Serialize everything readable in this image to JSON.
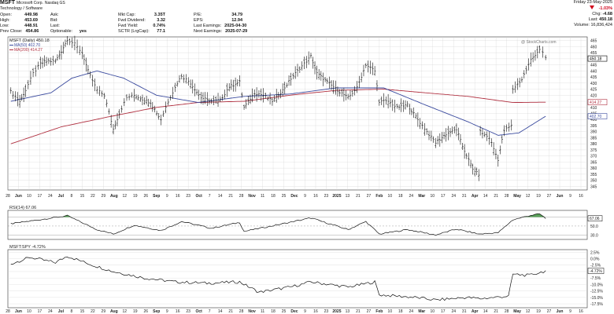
{
  "header": {
    "ticker": "MSFT",
    "name": "Microsoft Corp.",
    "exchange": "Nasdaq GS",
    "sector": "Technology / Software",
    "date": "Friday 23-May-2025",
    "chg_pct": "-1.03%",
    "chg_label": "Chg:",
    "chg": "-4.68",
    "last_label": "Last:",
    "last": "450.18",
    "volume": "Volume: 16,836,424",
    "watermark": "@ StockCharts.com"
  },
  "fundamentals": [
    [
      {
        "label": "Open:",
        "value": "449.98"
      },
      {
        "label": "High:",
        "value": "453.69"
      },
      {
        "label": "Low:",
        "value": "448.91"
      },
      {
        "label": "Prev Close:",
        "value": "454.86"
      }
    ],
    [
      {
        "label": "Ask:",
        "value": ""
      },
      {
        "label": "Bid:",
        "value": ""
      },
      {
        "label": "Last:",
        "value": ""
      },
      {
        "label": "Optionable:",
        "value": "yes"
      }
    ],
    [
      {
        "label": "Mkt Cap:",
        "value": "3.35T"
      },
      {
        "label": "Fwd Dividend:",
        "value": "3.32"
      },
      {
        "label": "Fwd Yield:",
        "value": "0.74%"
      },
      {
        "label": "SCTR (LrgCap):",
        "value": "77.1"
      }
    ],
    [
      {
        "label": "P/E:",
        "value": "34.79"
      },
      {
        "label": "EPS:",
        "value": "12.94"
      },
      {
        "label": "Last Earnings:",
        "value": "2025-04-30"
      },
      {
        "label": "Next Earnings:",
        "value": "2025-07-29"
      }
    ]
  ],
  "colors": {
    "price": "#111111",
    "ma50": "#3a4a9e",
    "ma200": "#b03040",
    "rsi_fill": "#3d8f3d",
    "axis": "#333333",
    "grid": "#d0d0d0"
  },
  "chart_data": [
    {
      "type": "line",
      "panel": "price",
      "title": "MSFT (Daily) 450.18",
      "legend": [
        "MA(50) 402.70",
        "MA(200) 414.27"
      ],
      "chart_style": "ohlc",
      "y_ticks": [
        "465",
        "460",
        "455",
        "450",
        "445",
        "440",
        "435",
        "430",
        "425",
        "420",
        "415",
        "410",
        "405",
        "400",
        "395",
        "390",
        "385",
        "380",
        "375",
        "370",
        "365",
        "360",
        "355",
        "350",
        "345"
      ],
      "ylim": [
        342,
        468
      ],
      "y_markers": {
        "last": "450.18",
        "ma200": "414.27",
        "ma50": "402.70"
      },
      "x_tick_labels": [
        "28",
        "Jun",
        "10",
        "17",
        "24",
        "Jul",
        "8",
        "15",
        "22",
        "29",
        "Aug",
        "12",
        "19",
        "26",
        "Sep",
        "9",
        "16",
        "23",
        "Oct",
        "7",
        "14",
        "21",
        "28",
        "Nov",
        "11",
        "18",
        "25",
        "Dec",
        "9",
        "16",
        "23",
        "2025",
        "13",
        "21",
        "27",
        "Feb",
        "10",
        "18",
        "24",
        "Mar",
        "10",
        "17",
        "24",
        "31",
        "Apr",
        "14",
        "21",
        "28",
        "May",
        "12",
        "19",
        "27",
        "Jun",
        "9",
        "16"
      ],
      "series": [
        {
          "name": "MSFT",
          "values": [
            {
              "x": "2024-05-28",
              "y": 423
            },
            {
              "x": "2024-06-03",
              "y": 415
            },
            {
              "x": "2024-06-07",
              "y": 424
            },
            {
              "x": "2024-06-12",
              "y": 438
            },
            {
              "x": "2024-06-17",
              "y": 446
            },
            {
              "x": "2024-06-21",
              "y": 448
            },
            {
              "x": "2024-06-27",
              "y": 448
            },
            {
              "x": "2024-07-01",
              "y": 456
            },
            {
              "x": "2024-07-05",
              "y": 466
            },
            {
              "x": "2024-07-10",
              "y": 462
            },
            {
              "x": "2024-07-15",
              "y": 455
            },
            {
              "x": "2024-07-19",
              "y": 440
            },
            {
              "x": "2024-07-25",
              "y": 424
            },
            {
              "x": "2024-07-30",
              "y": 420
            },
            {
              "x": "2024-08-05",
              "y": 392
            },
            {
              "x": "2024-08-09",
              "y": 405
            },
            {
              "x": "2024-08-14",
              "y": 418
            },
            {
              "x": "2024-08-19",
              "y": 420
            },
            {
              "x": "2024-08-26",
              "y": 416
            },
            {
              "x": "2024-08-30",
              "y": 414
            },
            {
              "x": "2024-09-06",
              "y": 400
            },
            {
              "x": "2024-09-11",
              "y": 415
            },
            {
              "x": "2024-09-17",
              "y": 430
            },
            {
              "x": "2024-09-20",
              "y": 436
            },
            {
              "x": "2024-09-26",
              "y": 430
            },
            {
              "x": "2024-10-03",
              "y": 418
            },
            {
              "x": "2024-10-10",
              "y": 415
            },
            {
              "x": "2024-10-16",
              "y": 416
            },
            {
              "x": "2024-10-22",
              "y": 427
            },
            {
              "x": "2024-10-29",
              "y": 431
            },
            {
              "x": "2024-11-01",
              "y": 410
            },
            {
              "x": "2024-11-08",
              "y": 422
            },
            {
              "x": "2024-11-14",
              "y": 420
            },
            {
              "x": "2024-11-20",
              "y": 415
            },
            {
              "x": "2024-11-27",
              "y": 424
            },
            {
              "x": "2024-12-04",
              "y": 436
            },
            {
              "x": "2024-12-10",
              "y": 444
            },
            {
              "x": "2024-12-16",
              "y": 452
            },
            {
              "x": "2024-12-20",
              "y": 438
            },
            {
              "x": "2024-12-27",
              "y": 431
            },
            {
              "x": "2025-01-03",
              "y": 424
            },
            {
              "x": "2025-01-10",
              "y": 418
            },
            {
              "x": "2025-01-16",
              "y": 426
            },
            {
              "x": "2025-01-22",
              "y": 445
            },
            {
              "x": "2025-01-28",
              "y": 440
            },
            {
              "x": "2025-01-31",
              "y": 415
            },
            {
              "x": "2025-02-06",
              "y": 415
            },
            {
              "x": "2025-02-12",
              "y": 410
            },
            {
              "x": "2025-02-19",
              "y": 412
            },
            {
              "x": "2025-02-26",
              "y": 400
            },
            {
              "x": "2025-03-04",
              "y": 390
            },
            {
              "x": "2025-03-10",
              "y": 381
            },
            {
              "x": "2025-03-17",
              "y": 388
            },
            {
              "x": "2025-03-24",
              "y": 392
            },
            {
              "x": "2025-03-28",
              "y": 378
            },
            {
              "x": "2025-04-04",
              "y": 359
            },
            {
              "x": "2025-04-08",
              "y": 355
            },
            {
              "x": "2025-04-09",
              "y": 390
            },
            {
              "x": "2025-04-15",
              "y": 385
            },
            {
              "x": "2025-04-21",
              "y": 367
            },
            {
              "x": "2025-04-25",
              "y": 391
            },
            {
              "x": "2025-04-30",
              "y": 395
            },
            {
              "x": "2025-05-01",
              "y": 425
            },
            {
              "x": "2025-05-07",
              "y": 433
            },
            {
              "x": "2025-05-13",
              "y": 449
            },
            {
              "x": "2025-05-19",
              "y": 458
            },
            {
              "x": "2025-05-21",
              "y": 455
            },
            {
              "x": "2025-05-23",
              "y": 450.18
            }
          ]
        },
        {
          "name": "MA(50)",
          "values": [
            {
              "x": "2024-05-28",
              "y": 415
            },
            {
              "x": "2024-06-24",
              "y": 422
            },
            {
              "x": "2024-07-08",
              "y": 434
            },
            {
              "x": "2024-07-25",
              "y": 440
            },
            {
              "x": "2024-08-12",
              "y": 434
            },
            {
              "x": "2024-09-03",
              "y": 420
            },
            {
              "x": "2024-10-01",
              "y": 414
            },
            {
              "x": "2024-11-01",
              "y": 419
            },
            {
              "x": "2024-12-02",
              "y": 421
            },
            {
              "x": "2025-01-02",
              "y": 426
            },
            {
              "x": "2025-02-03",
              "y": 426
            },
            {
              "x": "2025-03-03",
              "y": 412
            },
            {
              "x": "2025-04-01",
              "y": 398
            },
            {
              "x": "2025-04-21",
              "y": 387
            },
            {
              "x": "2025-05-05",
              "y": 389
            },
            {
              "x": "2025-05-23",
              "y": 402.7
            }
          ]
        },
        {
          "name": "MA(200)",
          "values": [
            {
              "x": "2024-05-28",
              "y": 380
            },
            {
              "x": "2024-07-01",
              "y": 394
            },
            {
              "x": "2024-08-01",
              "y": 402
            },
            {
              "x": "2024-09-03",
              "y": 410
            },
            {
              "x": "2024-10-01",
              "y": 414
            },
            {
              "x": "2024-11-01",
              "y": 415
            },
            {
              "x": "2024-12-02",
              "y": 420
            },
            {
              "x": "2025-01-02",
              "y": 424
            },
            {
              "x": "2025-02-03",
              "y": 425
            },
            {
              "x": "2025-03-03",
              "y": 422
            },
            {
              "x": "2025-04-01",
              "y": 419
            },
            {
              "x": "2025-05-01",
              "y": 414
            },
            {
              "x": "2025-05-23",
              "y": 414.27
            }
          ]
        }
      ]
    },
    {
      "type": "line",
      "panel": "rsi",
      "title": "RSI(14) 67.06",
      "y_ticks": [
        "70.0",
        "50.0",
        "30.0"
      ],
      "ylim": [
        20,
        85
      ],
      "last": "67.06",
      "series": [
        {
          "name": "RSI(14)",
          "values": [
            {
              "x": "2024-05-28",
              "y": 55
            },
            {
              "x": "2024-06-12",
              "y": 62
            },
            {
              "x": "2024-07-05",
              "y": 73
            },
            {
              "x": "2024-07-25",
              "y": 42
            },
            {
              "x": "2024-08-05",
              "y": 32
            },
            {
              "x": "2024-08-19",
              "y": 52
            },
            {
              "x": "2024-09-06",
              "y": 40
            },
            {
              "x": "2024-09-20",
              "y": 60
            },
            {
              "x": "2024-10-10",
              "y": 45
            },
            {
              "x": "2024-10-29",
              "y": 58
            },
            {
              "x": "2024-11-01",
              "y": 38
            },
            {
              "x": "2024-11-27",
              "y": 55
            },
            {
              "x": "2024-12-16",
              "y": 68
            },
            {
              "x": "2025-01-10",
              "y": 42
            },
            {
              "x": "2025-01-22",
              "y": 60
            },
            {
              "x": "2025-01-31",
              "y": 32
            },
            {
              "x": "2025-02-19",
              "y": 42
            },
            {
              "x": "2025-03-10",
              "y": 30
            },
            {
              "x": "2025-03-24",
              "y": 43
            },
            {
              "x": "2025-04-08",
              "y": 32
            },
            {
              "x": "2025-04-21",
              "y": 35
            },
            {
              "x": "2025-05-01",
              "y": 64
            },
            {
              "x": "2025-05-13",
              "y": 74
            },
            {
              "x": "2025-05-19",
              "y": 77
            },
            {
              "x": "2025-05-23",
              "y": 67.06
            }
          ]
        }
      ]
    },
    {
      "type": "line",
      "panel": "relative",
      "title": "MSFT:SPY -4.72%",
      "y_ticks": [
        "2.5%",
        "0.0%",
        "-2.5%",
        "-5.0%",
        "-7.5%",
        "-10.0%",
        "-12.5%",
        "-15.0%",
        "-17.5%"
      ],
      "ylim": [
        -19,
        3.5
      ],
      "last": "-4.72%",
      "series": [
        {
          "name": "MSFT:SPY",
          "values": [
            {
              "x": "2024-05-28",
              "y": -2
            },
            {
              "x": "2024-06-10",
              "y": 0.5
            },
            {
              "x": "2024-06-27",
              "y": -1.5
            },
            {
              "x": "2024-07-05",
              "y": 1
            },
            {
              "x": "2024-07-22",
              "y": -2.5
            },
            {
              "x": "2024-08-05",
              "y": -5
            },
            {
              "x": "2024-08-26",
              "y": -7.5
            },
            {
              "x": "2024-09-16",
              "y": -9
            },
            {
              "x": "2024-10-07",
              "y": -9.5
            },
            {
              "x": "2024-10-29",
              "y": -9
            },
            {
              "x": "2024-11-11",
              "y": -13
            },
            {
              "x": "2024-12-02",
              "y": -11
            },
            {
              "x": "2024-12-16",
              "y": -9
            },
            {
              "x": "2025-01-10",
              "y": -11
            },
            {
              "x": "2025-01-28",
              "y": -9
            },
            {
              "x": "2025-01-31",
              "y": -14
            },
            {
              "x": "2025-02-24",
              "y": -15
            },
            {
              "x": "2025-03-10",
              "y": -16
            },
            {
              "x": "2025-03-31",
              "y": -15
            },
            {
              "x": "2025-04-09",
              "y": -15.5
            },
            {
              "x": "2025-04-28",
              "y": -14.5
            },
            {
              "x": "2025-05-01",
              "y": -6
            },
            {
              "x": "2025-05-12",
              "y": -6.5
            },
            {
              "x": "2025-05-23",
              "y": -4.72
            }
          ]
        }
      ]
    }
  ]
}
